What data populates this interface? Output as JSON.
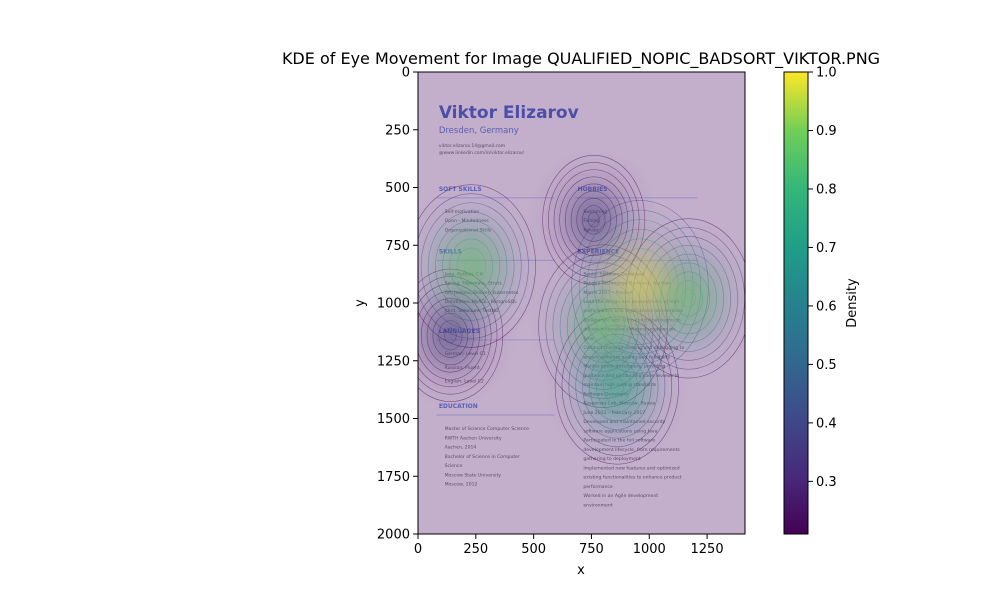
{
  "chart_data": {
    "type": "heatmap",
    "title": "KDE of Eye Movement for Image QUALIFIED_NOPIC_BADSORT_VIKTOR.PNG",
    "xlabel": "x",
    "ylabel": "y",
    "xlim": [
      0,
      1414
    ],
    "ylim": [
      2000,
      0
    ],
    "y_inverted": true,
    "x_ticks": [
      0,
      250,
      500,
      750,
      1000,
      1250
    ],
    "y_ticks": [
      0,
      250,
      500,
      750,
      1000,
      1250,
      1500,
      1750,
      2000
    ],
    "colorbar": {
      "label": "Density",
      "colormap": "viridis",
      "range": [
        0.21,
        1.0
      ],
      "ticks": [
        0.3,
        0.4,
        0.5,
        0.6,
        0.7,
        0.8,
        0.9,
        1.0
      ]
    },
    "density_peaks": [
      {
        "x": 230,
        "y": 840,
        "density": 0.85
      },
      {
        "x": 960,
        "y": 930,
        "density": 1.0
      },
      {
        "x": 1170,
        "y": 980,
        "density": 0.8
      },
      {
        "x": 800,
        "y": 1100,
        "density": 0.85
      },
      {
        "x": 860,
        "y": 1360,
        "density": 0.75
      },
      {
        "x": 140,
        "y": 1140,
        "density": 0.4
      },
      {
        "x": 760,
        "y": 640,
        "density": 0.35
      }
    ],
    "background_document": {
      "name": "Viktor Elizarov",
      "location": "Dresden, Germany",
      "contact": [
        "viktor.elizarov.14@gmail.com",
        "@www.linkedin.com/in/viktor.elizarov/"
      ],
      "left_column": [
        {
          "heading": "SOFT SKILLS",
          "items": [
            "Self-motivation",
            "Open - Mindedness",
            "Organizational Skills"
          ]
        },
        {
          "heading": "SKILLS",
          "items": [
            "Java, Python, C#",
            "Spring, Hibernate, Struts",
            "Git, Jenkins, Docker, Kubernetes",
            "Databases: MySQL, PostgreSQL",
            "JUnit, Selenium, TestNG"
          ]
        },
        {
          "heading": "LANGUAGES",
          "items": [
            "German: Level C1",
            "Russian: Fluent",
            "English: Level C2"
          ]
        },
        {
          "heading": "EDUCATION",
          "items": [
            "Master of Science Computer Science",
            "RWTH Aachen University",
            "Aachen, 2014",
            "Bachelor of Science in Computer",
            "Science",
            "Moscow State University",
            "Moscow, 2012"
          ]
        }
      ],
      "right_column": [
        {
          "heading": "HOBBIES",
          "items": [
            "Swimming",
            "Fishing",
            "Karate"
          ]
        },
        {
          "heading": "EXPERIENCE",
          "items": [
            "Senior Software Developer",
            "Pangea Technology Germany, Aachen",
            "March 2017 – Present",
            "Lead the design and development of high-",
            "performance web applications and services",
            "Collaborate with cross-functional teams to",
            "deliver innovative software solutions on",
            "time",
            "Conduct thorough testing and debugging to",
            "ensure software quality and reliability",
            "Mentor junior developers, providing",
            "guidance and conducting code reviews to",
            "maintain high coding standards",
            "Software Developer",
            "Kaspersky Lab, Moscow, Russia",
            "June 2012 – February 2017",
            "Developed and maintained security",
            "software applications using Java",
            "Participated in the full software",
            "development lifecycle, from requirements",
            "gathering to deployment",
            "Implemented new features and optimized",
            "existing functionalities to enhance product",
            "performance",
            "Worked in an Agile development",
            "environment"
          ]
        }
      ]
    }
  }
}
